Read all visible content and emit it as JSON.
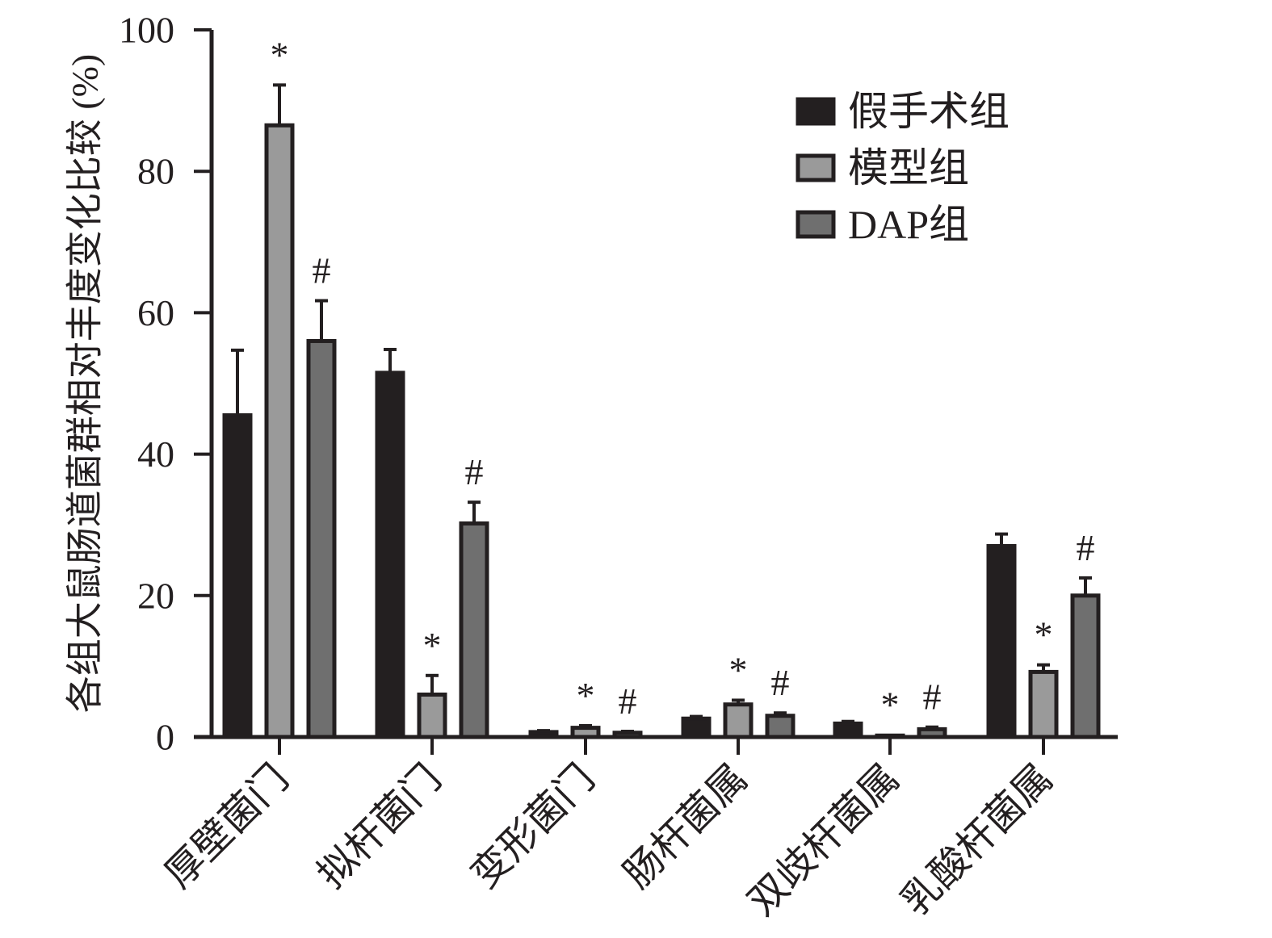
{
  "chart_data": {
    "type": "bar",
    "title": "",
    "xlabel": "",
    "ylabel": "各组大鼠肠道菌群相对丰度变化比较 (%)",
    "ylim": [
      0,
      100
    ],
    "yticks": [
      0,
      20,
      40,
      60,
      80,
      100
    ],
    "categories": [
      "厚壁菌门",
      "拟杆菌门",
      "变形菌门",
      "肠杆菌属",
      "双歧杆菌属",
      "乳酸杆菌属"
    ],
    "legend_position": "top-right",
    "grid": false,
    "series": [
      {
        "name": "假手术组",
        "color": "#231f20",
        "values": [
          45.5,
          51.5,
          0.7,
          2.6,
          1.9,
          27.0
        ],
        "errors": [
          9.2,
          3.3,
          0.2,
          0.3,
          0.3,
          1.7
        ],
        "marks": [
          "",
          "",
          "",
          "",
          "",
          ""
        ]
      },
      {
        "name": "模型组",
        "color": "#9a9a9a",
        "values": [
          86.5,
          6.0,
          1.3,
          4.6,
          0.2,
          9.2
        ],
        "errors": [
          5.7,
          2.7,
          0.3,
          0.6,
          0.1,
          1.0
        ],
        "marks": [
          "*",
          "*",
          "*",
          "*",
          "*",
          "*"
        ]
      },
      {
        "name": "DAP组",
        "color": "#6f6f6f",
        "values": [
          56.0,
          30.2,
          0.6,
          3.0,
          1.1,
          20.0
        ],
        "errors": [
          5.7,
          3.0,
          0.2,
          0.4,
          0.3,
          2.5
        ],
        "marks": [
          "#",
          "#",
          "#",
          "#",
          "#",
          "#"
        ]
      }
    ]
  }
}
